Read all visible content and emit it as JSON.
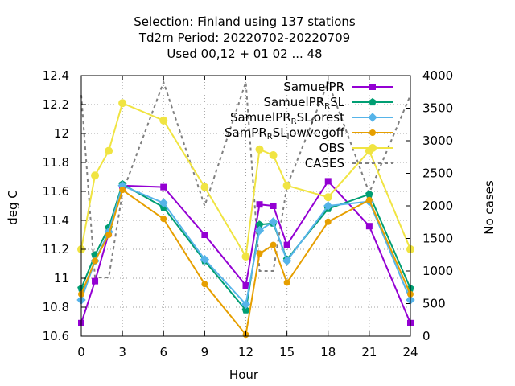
{
  "chart_data": {
    "type": "line",
    "title_lines": [
      "Selection: Finland using   137 stations",
      "Td2m   Period: 20220702-20220709",
      "Used  00,12  + 01 02 ... 48"
    ],
    "xlabel": "Hour",
    "ylabel": "deg C",
    "y2label": "No cases",
    "xlim": [
      0,
      24
    ],
    "ylim": [
      10.6,
      12.4
    ],
    "y2lim": [
      0,
      4000
    ],
    "xticks": [
      0,
      3,
      6,
      9,
      12,
      15,
      18,
      21,
      24
    ],
    "yticks": [
      10.6,
      10.8,
      11,
      11.2,
      11.4,
      11.6,
      11.8,
      12,
      12.2,
      12.4
    ],
    "ytick_labels": [
      "10.6",
      "10.8",
      "11",
      "11.2",
      "11.4",
      "11.6",
      "11.8",
      "12",
      "12.2",
      "12.4"
    ],
    "y2ticks": [
      0,
      500,
      1000,
      1500,
      2000,
      2500,
      3000,
      3500,
      4000
    ],
    "legend_position": "top-right",
    "grid": true,
    "x": [
      0,
      1,
      2,
      3,
      6,
      9,
      12,
      13,
      14,
      15,
      18,
      21,
      24
    ],
    "series": [
      {
        "name": "SamuelPR",
        "name_parts": [
          [
            "SamuelPR",
            ""
          ]
        ],
        "color": "#9400d3",
        "marker": "square",
        "values": [
          10.69,
          10.98,
          11.31,
          11.64,
          11.63,
          11.3,
          10.95,
          11.51,
          11.5,
          11.23,
          11.67,
          11.36,
          10.69
        ]
      },
      {
        "name": "SamuelPR_RSL",
        "name_parts": [
          [
            "SamuelPR",
            ""
          ],
          [
            "R",
            "sub"
          ],
          [
            "SL",
            ""
          ]
        ],
        "color": "#009e73",
        "marker": "pentagon",
        "values": [
          10.93,
          11.16,
          11.35,
          11.65,
          11.49,
          11.12,
          10.78,
          11.37,
          11.38,
          11.13,
          11.48,
          11.58,
          10.93
        ]
      },
      {
        "name": "SamuelPR_RSL_forest",
        "name_parts": [
          [
            "SamuelPR",
            ""
          ],
          [
            "R",
            "sub"
          ],
          [
            "SL",
            ""
          ],
          [
            "f",
            "sub"
          ],
          [
            "orest",
            ""
          ]
        ],
        "color": "#56b4e9",
        "marker": "diamond",
        "values": [
          10.85,
          11.12,
          11.32,
          11.64,
          11.52,
          11.13,
          10.82,
          11.33,
          11.39,
          11.12,
          11.5,
          11.53,
          10.85
        ]
      },
      {
        "name": "SamPR_RSL_lowvegoff",
        "name_parts": [
          [
            "SamPR",
            ""
          ],
          [
            "R",
            "sub"
          ],
          [
            "SL",
            ""
          ],
          [
            "l",
            "sub"
          ],
          [
            "owvegoff",
            ""
          ]
        ],
        "color": "#e69f00",
        "marker": "circle",
        "values": [
          10.89,
          11.12,
          11.3,
          11.61,
          11.41,
          10.96,
          10.61,
          11.17,
          11.23,
          10.97,
          11.39,
          11.54,
          10.89
        ]
      },
      {
        "name": "OBS",
        "name_parts": [
          [
            "OBS",
            ""
          ]
        ],
        "color": "#f0e442",
        "marker": "circle-big",
        "values": [
          11.2,
          11.71,
          11.88,
          12.21,
          12.09,
          11.63,
          11.15,
          11.89,
          11.85,
          11.64,
          11.56,
          11.88,
          11.2
        ]
      }
    ],
    "cases": {
      "name": "CASES",
      "color": "#808080",
      "x": [
        0,
        1,
        2,
        3,
        6,
        9,
        12,
        13,
        14,
        15,
        18,
        21,
        24
      ],
      "values": [
        3700,
        900,
        900,
        2200,
        3900,
        2000,
        3900,
        1000,
        1000,
        2300,
        3900,
        2200,
        3700
      ]
    }
  }
}
